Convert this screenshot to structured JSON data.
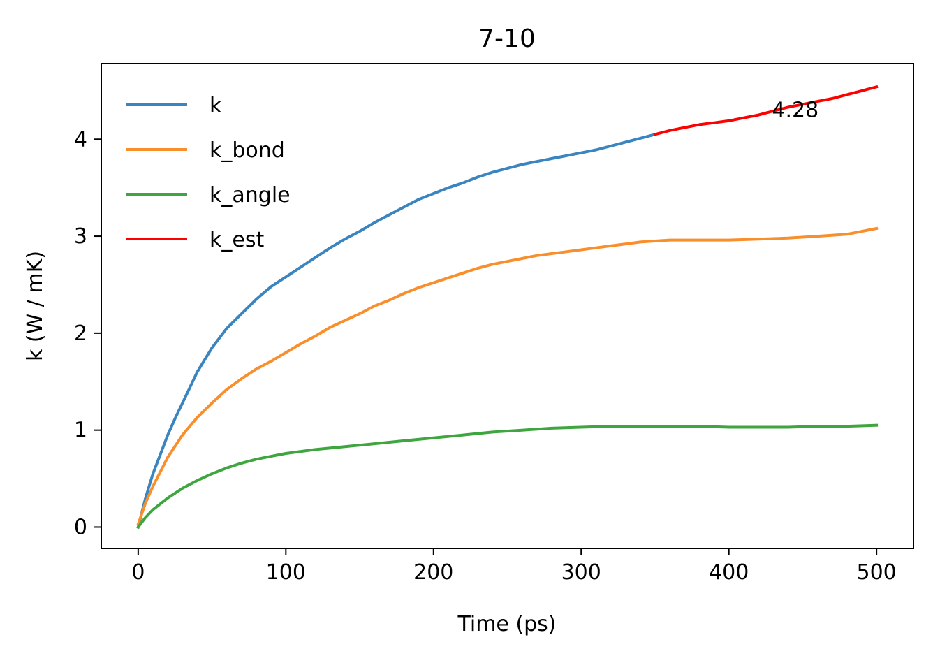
{
  "chart_data": {
    "type": "line",
    "title": "7-10",
    "xlabel": "Time (ps)",
    "ylabel": "k (W / mK)",
    "xlim": [
      -25,
      525
    ],
    "ylim": [
      -0.22,
      4.78
    ],
    "xticks": [
      0,
      100,
      200,
      300,
      400,
      500
    ],
    "yticks": [
      0,
      1,
      2,
      3,
      4
    ],
    "grid": false,
    "legend_position": "top-left",
    "annotation": {
      "text": "4.28",
      "x": 445,
      "y": 4.3
    },
    "series": [
      {
        "name": "k",
        "color": "#3a84bf",
        "points": [
          [
            0,
            0.0
          ],
          [
            2,
            0.12
          ],
          [
            5,
            0.3
          ],
          [
            10,
            0.55
          ],
          [
            15,
            0.75
          ],
          [
            20,
            0.95
          ],
          [
            25,
            1.12
          ],
          [
            30,
            1.28
          ],
          [
            35,
            1.44
          ],
          [
            40,
            1.6
          ],
          [
            50,
            1.85
          ],
          [
            60,
            2.05
          ],
          [
            70,
            2.2
          ],
          [
            80,
            2.35
          ],
          [
            90,
            2.48
          ],
          [
            100,
            2.58
          ],
          [
            110,
            2.68
          ],
          [
            120,
            2.78
          ],
          [
            130,
            2.88
          ],
          [
            140,
            2.97
          ],
          [
            150,
            3.05
          ],
          [
            160,
            3.14
          ],
          [
            170,
            3.22
          ],
          [
            180,
            3.3
          ],
          [
            190,
            3.38
          ],
          [
            200,
            3.44
          ],
          [
            210,
            3.5
          ],
          [
            220,
            3.55
          ],
          [
            230,
            3.61
          ],
          [
            240,
            3.66
          ],
          [
            250,
            3.7
          ],
          [
            260,
            3.74
          ],
          [
            270,
            3.77
          ],
          [
            280,
            3.8
          ],
          [
            290,
            3.83
          ],
          [
            300,
            3.86
          ],
          [
            310,
            3.89
          ],
          [
            320,
            3.93
          ],
          [
            330,
            3.97
          ],
          [
            340,
            4.01
          ],
          [
            350,
            4.05
          ]
        ]
      },
      {
        "name": "k_bond",
        "color": "#f88f2c",
        "points": [
          [
            0,
            0.03
          ],
          [
            5,
            0.25
          ],
          [
            10,
            0.42
          ],
          [
            20,
            0.72
          ],
          [
            30,
            0.95
          ],
          [
            40,
            1.13
          ],
          [
            50,
            1.28
          ],
          [
            60,
            1.42
          ],
          [
            70,
            1.53
          ],
          [
            80,
            1.63
          ],
          [
            90,
            1.71
          ],
          [
            100,
            1.8
          ],
          [
            110,
            1.89
          ],
          [
            120,
            1.97
          ],
          [
            130,
            2.06
          ],
          [
            140,
            2.13
          ],
          [
            150,
            2.2
          ],
          [
            160,
            2.28
          ],
          [
            170,
            2.34
          ],
          [
            180,
            2.41
          ],
          [
            190,
            2.47
          ],
          [
            200,
            2.52
          ],
          [
            210,
            2.57
          ],
          [
            220,
            2.62
          ],
          [
            230,
            2.67
          ],
          [
            240,
            2.71
          ],
          [
            250,
            2.74
          ],
          [
            260,
            2.77
          ],
          [
            270,
            2.8
          ],
          [
            280,
            2.82
          ],
          [
            290,
            2.84
          ],
          [
            300,
            2.86
          ],
          [
            310,
            2.88
          ],
          [
            320,
            2.9
          ],
          [
            330,
            2.92
          ],
          [
            340,
            2.94
          ],
          [
            350,
            2.95
          ],
          [
            360,
            2.96
          ],
          [
            380,
            2.96
          ],
          [
            400,
            2.96
          ],
          [
            420,
            2.97
          ],
          [
            440,
            2.98
          ],
          [
            460,
            3.0
          ],
          [
            480,
            3.02
          ],
          [
            500,
            3.08
          ]
        ]
      },
      {
        "name": "k_angle",
        "color": "#3fa63f",
        "points": [
          [
            0,
            0.0
          ],
          [
            5,
            0.1
          ],
          [
            10,
            0.18
          ],
          [
            20,
            0.3
          ],
          [
            30,
            0.4
          ],
          [
            40,
            0.48
          ],
          [
            50,
            0.55
          ],
          [
            60,
            0.61
          ],
          [
            70,
            0.66
          ],
          [
            80,
            0.7
          ],
          [
            90,
            0.73
          ],
          [
            100,
            0.76
          ],
          [
            120,
            0.8
          ],
          [
            140,
            0.83
          ],
          [
            160,
            0.86
          ],
          [
            180,
            0.89
          ],
          [
            200,
            0.92
          ],
          [
            220,
            0.95
          ],
          [
            240,
            0.98
          ],
          [
            260,
            1.0
          ],
          [
            280,
            1.02
          ],
          [
            300,
            1.03
          ],
          [
            320,
            1.04
          ],
          [
            340,
            1.04
          ],
          [
            360,
            1.04
          ],
          [
            380,
            1.04
          ],
          [
            400,
            1.03
          ],
          [
            420,
            1.03
          ],
          [
            440,
            1.03
          ],
          [
            460,
            1.04
          ],
          [
            480,
            1.04
          ],
          [
            500,
            1.05
          ]
        ]
      },
      {
        "name": "k_est",
        "color": "#ff0000",
        "points": [
          [
            350,
            4.05
          ],
          [
            360,
            4.09
          ],
          [
            370,
            4.12
          ],
          [
            380,
            4.15
          ],
          [
            390,
            4.17
          ],
          [
            400,
            4.19
          ],
          [
            410,
            4.22
          ],
          [
            420,
            4.25
          ],
          [
            430,
            4.29
          ],
          [
            440,
            4.33
          ],
          [
            450,
            4.36
          ],
          [
            460,
            4.39
          ],
          [
            470,
            4.42
          ],
          [
            480,
            4.46
          ],
          [
            490,
            4.5
          ],
          [
            500,
            4.54
          ]
        ]
      }
    ]
  }
}
